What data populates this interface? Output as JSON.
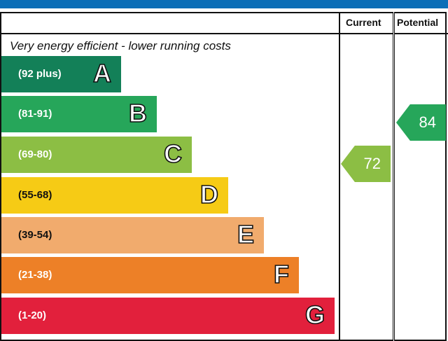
{
  "chart_data": {
    "type": "bar",
    "columns": [
      "Current",
      "Potential"
    ],
    "caption_top": "Very energy efficient - lower running costs",
    "bands": [
      {
        "range": "(92 plus)",
        "letter": "A",
        "color": "#138058"
      },
      {
        "range": "(81-91)",
        "letter": "B",
        "color": "#26a65a"
      },
      {
        "range": "(69-80)",
        "letter": "C",
        "color": "#8cbe44"
      },
      {
        "range": "(55-68)",
        "letter": "D",
        "color": "#f6cb15"
      },
      {
        "range": "(39-54)",
        "letter": "E",
        "color": "#f1ab6d"
      },
      {
        "range": "(21-38)",
        "letter": "F",
        "color": "#ed8027"
      },
      {
        "range": "(1-20)",
        "letter": "G",
        "color": "#e2203c"
      }
    ],
    "current": {
      "value": "72",
      "band": "C"
    },
    "potential": {
      "value": "84",
      "band": "B"
    }
  }
}
